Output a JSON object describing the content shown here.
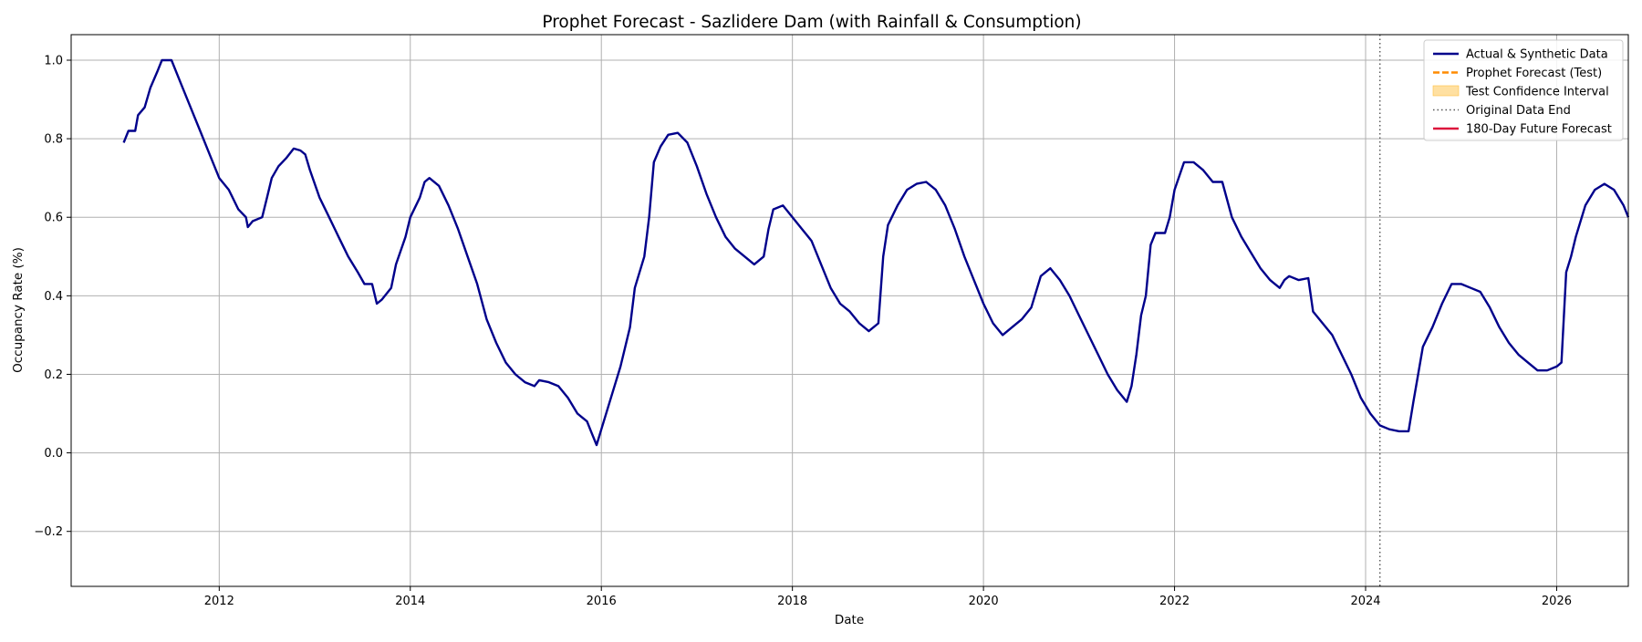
{
  "chart_data": {
    "type": "line",
    "title": "Prophet Forecast - Sazlidere Dam (with Rainfall & Consumption)",
    "xlabel": "Date",
    "ylabel": "Occupancy Rate (%)",
    "xlim": [
      2010.45,
      2026.75
    ],
    "ylim": [
      -0.34,
      1.065
    ],
    "grid": true,
    "legend_position": "top-right",
    "x_ticks": [
      {
        "value": 2012,
        "label": "2012"
      },
      {
        "value": 2014,
        "label": "2014"
      },
      {
        "value": 2016,
        "label": "2016"
      },
      {
        "value": 2018,
        "label": "2018"
      },
      {
        "value": 2020,
        "label": "2020"
      },
      {
        "value": 2022,
        "label": "2022"
      },
      {
        "value": 2024,
        "label": "2024"
      },
      {
        "value": 2026,
        "label": "2026"
      }
    ],
    "y_ticks": [
      {
        "value": -0.2,
        "label": "−0.2"
      },
      {
        "value": 0.0,
        "label": "0.0"
      },
      {
        "value": 0.2,
        "label": "0.2"
      },
      {
        "value": 0.4,
        "label": "0.4"
      },
      {
        "value": 0.6,
        "label": "0.6"
      },
      {
        "value": 0.8,
        "label": "0.8"
      },
      {
        "value": 1.0,
        "label": "1.0"
      }
    ],
    "vertical_line": {
      "x": 2024.15
    },
    "legend": [
      {
        "label": "Actual & Synthetic Data",
        "style": "solid",
        "color": "#00008b"
      },
      {
        "label": "Prophet Forecast (Test)",
        "style": "dashed",
        "color": "#ff8c00"
      },
      {
        "label": "Test Confidence Interval",
        "style": "band",
        "color": "#ffd88a"
      },
      {
        "label": "Original Data End",
        "style": "dotted",
        "color": "#555555"
      },
      {
        "label": "180-Day Future Forecast",
        "style": "solid",
        "color": "#dc143c"
      }
    ],
    "series": [
      {
        "legend_index": 0,
        "color": "#00008b",
        "points": [
          [
            2011.0,
            0.79
          ],
          [
            2011.05,
            0.82
          ],
          [
            2011.12,
            0.82
          ],
          [
            2011.15,
            0.86
          ],
          [
            2011.22,
            0.88
          ],
          [
            2011.28,
            0.93
          ],
          [
            2011.35,
            0.97
          ],
          [
            2011.4,
            1.0
          ],
          [
            2011.5,
            1.0
          ],
          [
            2011.6,
            0.94
          ],
          [
            2011.7,
            0.88
          ],
          [
            2011.8,
            0.82
          ],
          [
            2011.9,
            0.76
          ],
          [
            2012.0,
            0.7
          ],
          [
            2012.1,
            0.67
          ],
          [
            2012.2,
            0.62
          ],
          [
            2012.28,
            0.6
          ],
          [
            2012.3,
            0.575
          ],
          [
            2012.35,
            0.59
          ],
          [
            2012.45,
            0.6
          ],
          [
            2012.5,
            0.65
          ],
          [
            2012.55,
            0.7
          ],
          [
            2012.62,
            0.73
          ],
          [
            2012.7,
            0.75
          ],
          [
            2012.78,
            0.775
          ],
          [
            2012.85,
            0.77
          ],
          [
            2012.9,
            0.76
          ],
          [
            2012.95,
            0.72
          ],
          [
            2013.05,
            0.65
          ],
          [
            2013.15,
            0.6
          ],
          [
            2013.25,
            0.55
          ],
          [
            2013.35,
            0.5
          ],
          [
            2013.45,
            0.46
          ],
          [
            2013.52,
            0.43
          ],
          [
            2013.6,
            0.43
          ],
          [
            2013.65,
            0.38
          ],
          [
            2013.7,
            0.39
          ],
          [
            2013.8,
            0.42
          ],
          [
            2013.85,
            0.48
          ],
          [
            2013.95,
            0.55
          ],
          [
            2014.0,
            0.6
          ],
          [
            2014.1,
            0.65
          ],
          [
            2014.15,
            0.69
          ],
          [
            2014.2,
            0.7
          ],
          [
            2014.3,
            0.68
          ],
          [
            2014.4,
            0.63
          ],
          [
            2014.5,
            0.57
          ],
          [
            2014.6,
            0.5
          ],
          [
            2014.7,
            0.43
          ],
          [
            2014.8,
            0.34
          ],
          [
            2014.9,
            0.28
          ],
          [
            2015.0,
            0.23
          ],
          [
            2015.1,
            0.2
          ],
          [
            2015.2,
            0.18
          ],
          [
            2015.3,
            0.17
          ],
          [
            2015.35,
            0.185
          ],
          [
            2015.45,
            0.18
          ],
          [
            2015.55,
            0.17
          ],
          [
            2015.65,
            0.14
          ],
          [
            2015.75,
            0.1
          ],
          [
            2015.85,
            0.08
          ],
          [
            2015.9,
            0.05
          ],
          [
            2015.95,
            0.02
          ],
          [
            2016.0,
            0.06
          ],
          [
            2016.1,
            0.14
          ],
          [
            2016.2,
            0.22
          ],
          [
            2016.3,
            0.32
          ],
          [
            2016.35,
            0.42
          ],
          [
            2016.45,
            0.5
          ],
          [
            2016.5,
            0.6
          ],
          [
            2016.55,
            0.74
          ],
          [
            2016.62,
            0.78
          ],
          [
            2016.7,
            0.81
          ],
          [
            2016.8,
            0.815
          ],
          [
            2016.9,
            0.79
          ],
          [
            2017.0,
            0.73
          ],
          [
            2017.1,
            0.66
          ],
          [
            2017.2,
            0.6
          ],
          [
            2017.3,
            0.55
          ],
          [
            2017.4,
            0.52
          ],
          [
            2017.5,
            0.5
          ],
          [
            2017.6,
            0.48
          ],
          [
            2017.7,
            0.5
          ],
          [
            2017.75,
            0.57
          ],
          [
            2017.8,
            0.62
          ],
          [
            2017.9,
            0.63
          ],
          [
            2018.0,
            0.6
          ],
          [
            2018.1,
            0.57
          ],
          [
            2018.2,
            0.54
          ],
          [
            2018.3,
            0.48
          ],
          [
            2018.4,
            0.42
          ],
          [
            2018.5,
            0.38
          ],
          [
            2018.6,
            0.36
          ],
          [
            2018.7,
            0.33
          ],
          [
            2018.8,
            0.31
          ],
          [
            2018.9,
            0.33
          ],
          [
            2018.95,
            0.5
          ],
          [
            2019.0,
            0.58
          ],
          [
            2019.1,
            0.63
          ],
          [
            2019.2,
            0.67
          ],
          [
            2019.3,
            0.685
          ],
          [
            2019.4,
            0.69
          ],
          [
            2019.5,
            0.67
          ],
          [
            2019.6,
            0.63
          ],
          [
            2019.7,
            0.57
          ],
          [
            2019.8,
            0.5
          ],
          [
            2019.9,
            0.44
          ],
          [
            2020.0,
            0.38
          ],
          [
            2020.1,
            0.33
          ],
          [
            2020.2,
            0.3
          ],
          [
            2020.3,
            0.32
          ],
          [
            2020.4,
            0.34
          ],
          [
            2020.5,
            0.37
          ],
          [
            2020.6,
            0.45
          ],
          [
            2020.7,
            0.47
          ],
          [
            2020.8,
            0.44
          ],
          [
            2020.9,
            0.4
          ],
          [
            2021.0,
            0.35
          ],
          [
            2021.1,
            0.3
          ],
          [
            2021.2,
            0.25
          ],
          [
            2021.3,
            0.2
          ],
          [
            2021.4,
            0.16
          ],
          [
            2021.5,
            0.13
          ],
          [
            2021.55,
            0.17
          ],
          [
            2021.6,
            0.25
          ],
          [
            2021.65,
            0.35
          ],
          [
            2021.7,
            0.4
          ],
          [
            2021.75,
            0.53
          ],
          [
            2021.8,
            0.56
          ],
          [
            2021.9,
            0.56
          ],
          [
            2021.95,
            0.6
          ],
          [
            2022.0,
            0.67
          ],
          [
            2022.1,
            0.74
          ],
          [
            2022.2,
            0.74
          ],
          [
            2022.3,
            0.72
          ],
          [
            2022.4,
            0.69
          ],
          [
            2022.5,
            0.69
          ],
          [
            2022.6,
            0.6
          ],
          [
            2022.7,
            0.55
          ],
          [
            2022.8,
            0.51
          ],
          [
            2022.9,
            0.47
          ],
          [
            2023.0,
            0.44
          ],
          [
            2023.1,
            0.42
          ],
          [
            2023.15,
            0.44
          ],
          [
            2023.2,
            0.45
          ],
          [
            2023.3,
            0.44
          ],
          [
            2023.4,
            0.445
          ],
          [
            2023.45,
            0.36
          ],
          [
            2023.55,
            0.33
          ],
          [
            2023.65,
            0.3
          ],
          [
            2023.75,
            0.25
          ],
          [
            2023.85,
            0.2
          ],
          [
            2023.95,
            0.14
          ],
          [
            2024.05,
            0.1
          ],
          [
            2024.15,
            0.07
          ],
          [
            2024.25,
            0.06
          ],
          [
            2024.35,
            0.055
          ],
          [
            2024.45,
            0.055
          ],
          [
            2024.5,
            0.13
          ],
          [
            2024.55,
            0.2
          ],
          [
            2024.6,
            0.27
          ],
          [
            2024.7,
            0.32
          ],
          [
            2024.8,
            0.38
          ],
          [
            2024.9,
            0.43
          ],
          [
            2025.0,
            0.43
          ],
          [
            2025.1,
            0.42
          ],
          [
            2025.2,
            0.41
          ],
          [
            2025.3,
            0.37
          ],
          [
            2025.4,
            0.32
          ],
          [
            2025.5,
            0.28
          ],
          [
            2025.6,
            0.25
          ],
          [
            2025.7,
            0.23
          ],
          [
            2025.8,
            0.21
          ],
          [
            2025.9,
            0.21
          ],
          [
            2026.0,
            0.22
          ],
          [
            2026.05,
            0.23
          ],
          [
            2026.1,
            0.46
          ],
          [
            2026.15,
            0.5
          ],
          [
            2026.2,
            0.55
          ],
          [
            2026.3,
            0.63
          ],
          [
            2026.4,
            0.67
          ],
          [
            2026.5,
            0.685
          ],
          [
            2026.6,
            0.67
          ],
          [
            2026.7,
            0.63
          ],
          [
            2026.75,
            0.6
          ]
        ]
      }
    ]
  }
}
